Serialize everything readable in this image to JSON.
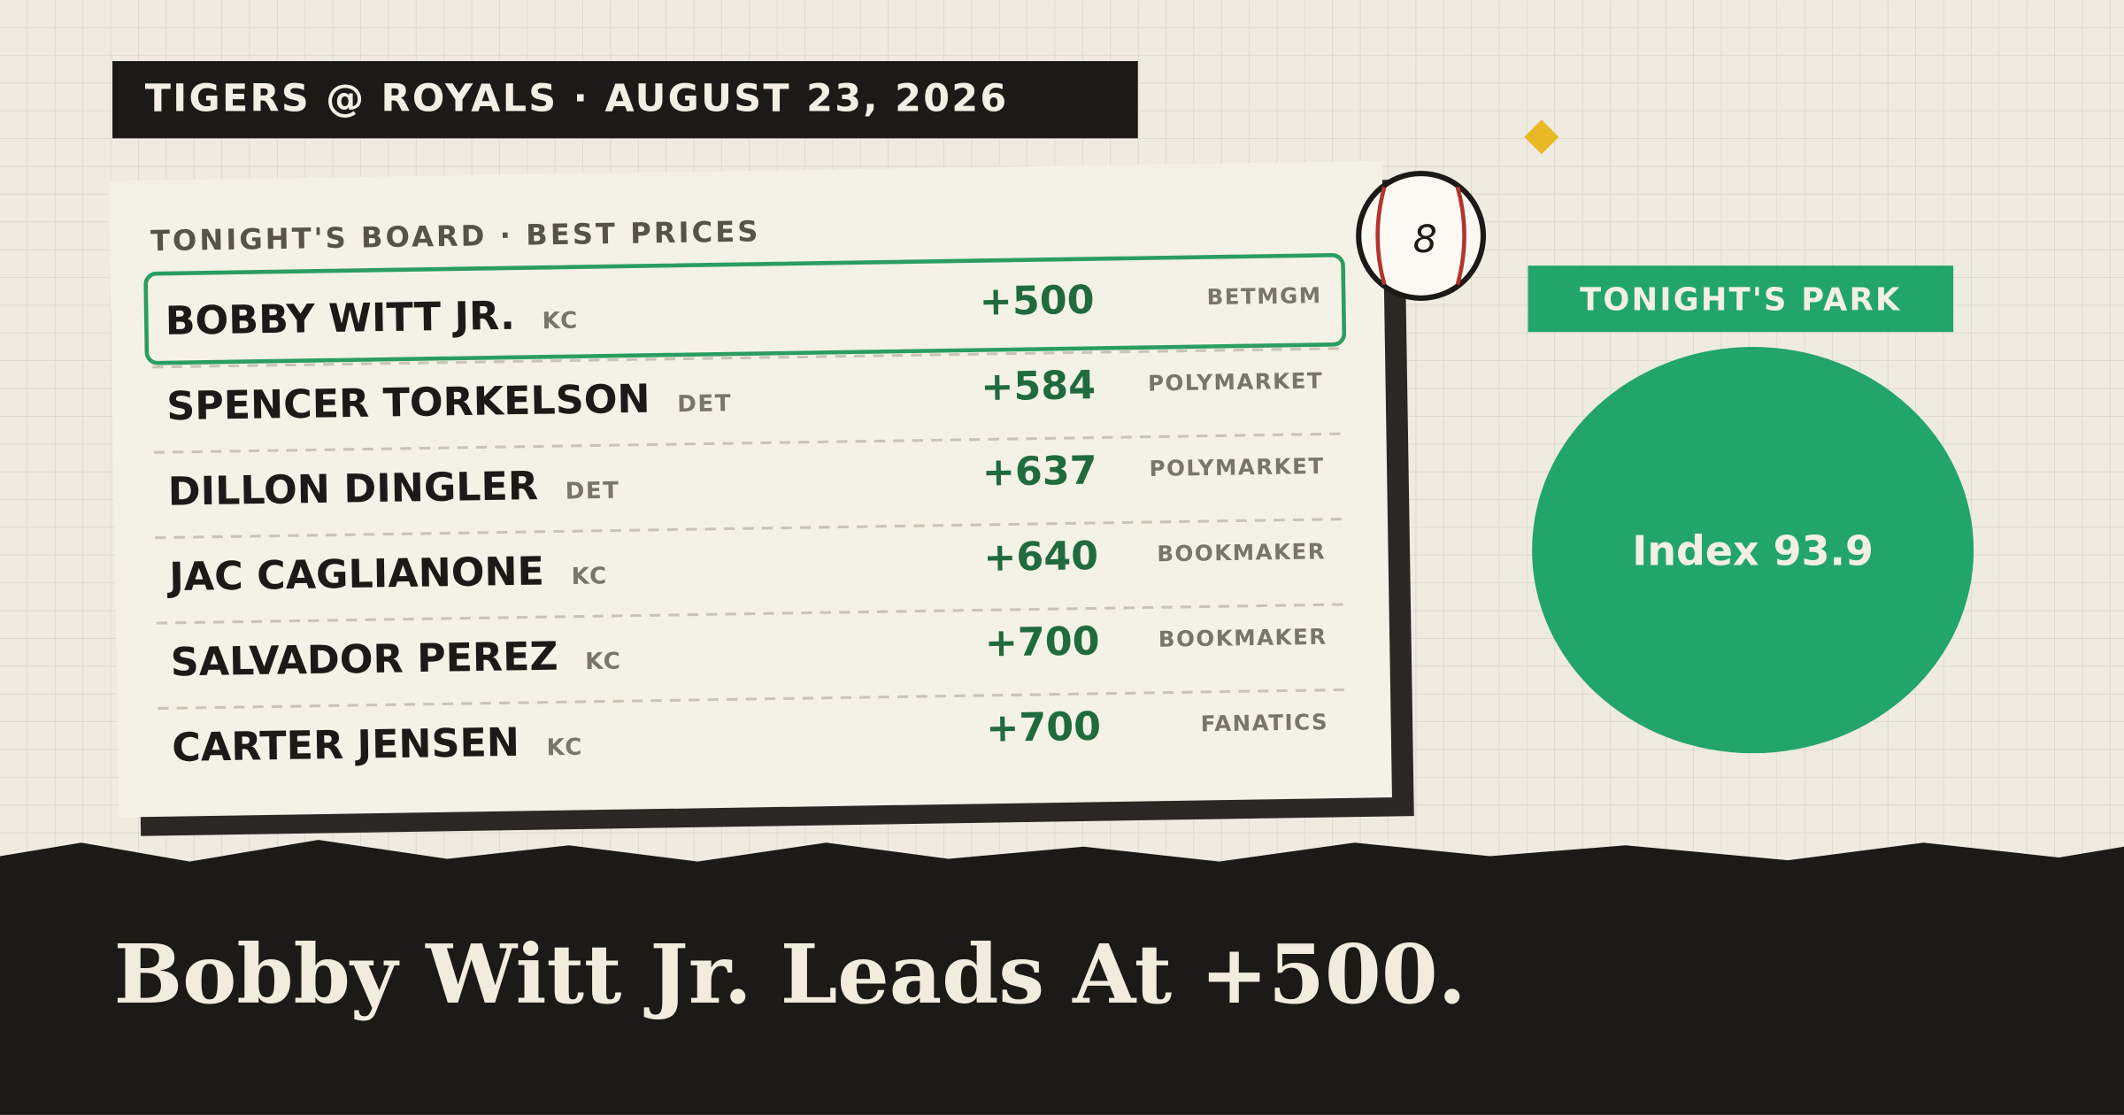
{
  "header": {
    "title": "TIGERS @ ROYALS · AUGUST 23, 2026"
  },
  "board": {
    "title": "TONIGHT'S BOARD · BEST PRICES",
    "badge": "8",
    "rows": [
      {
        "name": "BOBBY WITT JR.",
        "team": "KC",
        "odds": "+500",
        "book": "BETMGM"
      },
      {
        "name": "SPENCER TORKELSON",
        "team": "DET",
        "odds": "+584",
        "book": "POLYMARKET"
      },
      {
        "name": "DILLON DINGLER",
        "team": "DET",
        "odds": "+637",
        "book": "POLYMARKET"
      },
      {
        "name": "JAC CAGLIANONE",
        "team": "KC",
        "odds": "+640",
        "book": "BOOKMAKER"
      },
      {
        "name": "SALVADOR PEREZ",
        "team": "KC",
        "odds": "+700",
        "book": "BOOKMAKER"
      },
      {
        "name": "CARTER JENSEN",
        "team": "KC",
        "odds": "+700",
        "book": "FANATICS"
      }
    ]
  },
  "park": {
    "label": "TONIGHT'S PARK",
    "index": "Index 93.9"
  },
  "headline": "Bobby Witt Jr. Leads At +500."
}
